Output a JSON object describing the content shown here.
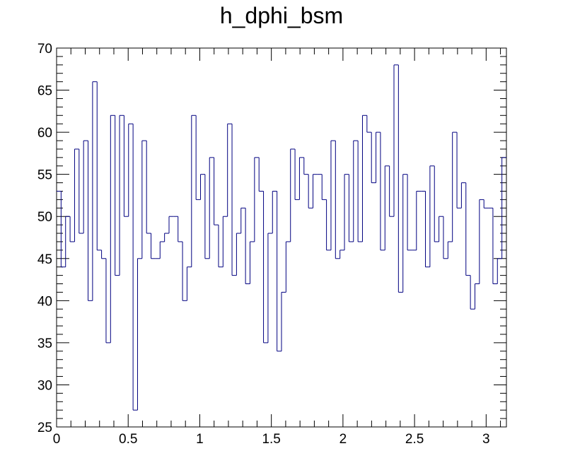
{
  "chart_data": {
    "type": "bar",
    "style": "step-histogram",
    "title": "h_dphi_bsm",
    "xlabel": "",
    "ylabel": "",
    "xlim": [
      0,
      3.1416
    ],
    "ylim": [
      25,
      70
    ],
    "bin_width": 0.031416,
    "x_ticks": [
      "0",
      "0.5",
      "1",
      "1.5",
      "2",
      "2.5",
      "3"
    ],
    "y_ticks": [
      "25",
      "30",
      "35",
      "40",
      "45",
      "50",
      "55",
      "60",
      "65",
      "70"
    ],
    "grid": false,
    "line_color": "#000080",
    "values": [
      53,
      44,
      50,
      47,
      58,
      48,
      59,
      40,
      66,
      46,
      45,
      35,
      62,
      43,
      62,
      50,
      61,
      27,
      45,
      59,
      48,
      45,
      45,
      47,
      48,
      50,
      50,
      47,
      40,
      44,
      62,
      52,
      55,
      45,
      57,
      49,
      44,
      50,
      61,
      43,
      48,
      51,
      42,
      47,
      57,
      53,
      35,
      48,
      53,
      34,
      41,
      47,
      58,
      52,
      57,
      55,
      51,
      55,
      55,
      52,
      46,
      59,
      45,
      46,
      55,
      47,
      59,
      47,
      62,
      60,
      54,
      60,
      46,
      56,
      50,
      68,
      41,
      55,
      46,
      46,
      53,
      53,
      44,
      56,
      47,
      50,
      45,
      47,
      60,
      51,
      54,
      43,
      39,
      42,
      52,
      51,
      51,
      42,
      45,
      57
    ]
  }
}
